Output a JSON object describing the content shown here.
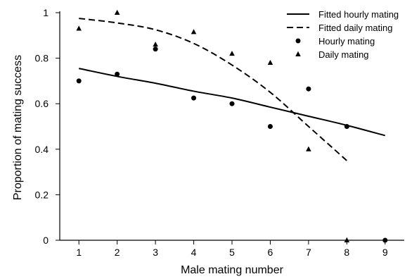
{
  "chart_data": {
    "type": "scatter",
    "xlabel": "Male mating number",
    "ylabel": "Proportion of mating success",
    "xlim": [
      0.5,
      9.5
    ],
    "ylim": [
      0,
      1
    ],
    "x_ticks": [
      1,
      2,
      3,
      4,
      5,
      6,
      7,
      8,
      9
    ],
    "y_ticks": [
      0,
      0.2,
      0.4,
      0.6,
      0.8,
      1
    ],
    "y_tick_labels": [
      "0",
      "0.2",
      "0.4",
      "0.6",
      "0.8",
      "1"
    ],
    "grid": false,
    "legend_position": "top-right",
    "series": [
      {
        "name": "Fitted hourly mating",
        "kind": "line",
        "style": "solid",
        "x": [
          1,
          2,
          3,
          4,
          5,
          6,
          7,
          8,
          9
        ],
        "y": [
          0.755,
          0.72,
          0.69,
          0.655,
          0.625,
          0.585,
          0.545,
          0.505,
          0.46
        ]
      },
      {
        "name": "Fitted daily mating",
        "kind": "line",
        "style": "dashed",
        "x": [
          1,
          2,
          3,
          4,
          5,
          6,
          7,
          8
        ],
        "y": [
          0.975,
          0.955,
          0.925,
          0.865,
          0.77,
          0.65,
          0.5,
          0.35
        ]
      },
      {
        "name": "Hourly mating",
        "kind": "points",
        "marker": "circle",
        "x": [
          1,
          2,
          3,
          4,
          5,
          6,
          7,
          8,
          9
        ],
        "y": [
          0.7,
          0.73,
          0.84,
          0.625,
          0.6,
          0.5,
          0.665,
          0.5,
          0.0
        ]
      },
      {
        "name": "Daily mating",
        "kind": "points",
        "marker": "triangle",
        "x": [
          1,
          2,
          3,
          4,
          5,
          6,
          7,
          8
        ],
        "y": [
          0.93,
          1.0,
          0.86,
          0.915,
          0.82,
          0.78,
          0.4,
          0.0
        ]
      }
    ]
  }
}
